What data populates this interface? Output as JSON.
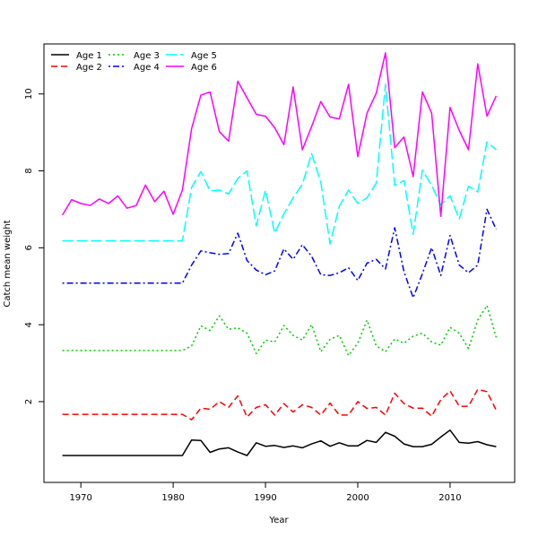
{
  "chart_data": {
    "type": "line",
    "title": "",
    "xlabel": "Year",
    "ylabel": "Catch mean weight",
    "xlim": [
      1966,
      2017
    ],
    "ylim": [
      -0.1,
      11.3
    ],
    "x_ticks": [
      1970,
      1980,
      1990,
      2000,
      2010
    ],
    "y_ticks": [
      2,
      4,
      6,
      8,
      10
    ],
    "grid": false,
    "legend_position": "top-left",
    "x": [
      1968,
      1969,
      1970,
      1971,
      1972,
      1973,
      1974,
      1975,
      1976,
      1977,
      1978,
      1979,
      1980,
      1981,
      1982,
      1983,
      1984,
      1985,
      1986,
      1987,
      1988,
      1989,
      1990,
      1991,
      1992,
      1993,
      1994,
      1995,
      1996,
      1997,
      1998,
      1999,
      2000,
      2001,
      2002,
      2003,
      2004,
      2005,
      2006,
      2007,
      2008,
      2009,
      2010,
      2011,
      2012,
      2013,
      2014,
      2015
    ],
    "series": [
      {
        "name": "Age 1",
        "color": "#000000",
        "dash": "solid",
        "values": [
          0.6,
          0.6,
          0.6,
          0.6,
          0.6,
          0.6,
          0.6,
          0.6,
          0.6,
          0.6,
          0.6,
          0.6,
          0.6,
          0.6,
          1.0,
          0.99,
          0.68,
          0.77,
          0.8,
          0.69,
          0.6,
          0.93,
          0.84,
          0.86,
          0.81,
          0.85,
          0.8,
          0.9,
          0.98,
          0.84,
          0.93,
          0.85,
          0.85,
          0.99,
          0.94,
          1.2,
          1.1,
          0.9,
          0.83,
          0.83,
          0.89,
          1.08,
          1.26,
          0.94,
          0.92,
          0.96,
          0.88,
          0.83
        ]
      },
      {
        "name": "Age 2",
        "color": "#ff0000",
        "dash": "dashed",
        "values": [
          1.67,
          1.67,
          1.67,
          1.67,
          1.67,
          1.67,
          1.67,
          1.67,
          1.67,
          1.67,
          1.67,
          1.67,
          1.67,
          1.67,
          1.53,
          1.83,
          1.8,
          2.0,
          1.85,
          2.15,
          1.6,
          1.85,
          1.92,
          1.65,
          1.95,
          1.73,
          1.92,
          1.85,
          1.65,
          1.96,
          1.65,
          1.65,
          2.0,
          1.82,
          1.85,
          1.65,
          2.22,
          1.95,
          1.83,
          1.83,
          1.62,
          2.05,
          2.28,
          1.88,
          1.88,
          2.32,
          2.26,
          1.78
        ]
      },
      {
        "name": "Age 3",
        "color": "#00cd00",
        "dash": "dotted",
        "values": [
          3.33,
          3.33,
          3.33,
          3.33,
          3.33,
          3.33,
          3.33,
          3.33,
          3.33,
          3.33,
          3.33,
          3.33,
          3.33,
          3.33,
          3.45,
          3.97,
          3.85,
          4.23,
          3.88,
          3.92,
          3.78,
          3.25,
          3.6,
          3.55,
          3.98,
          3.72,
          3.6,
          4.0,
          3.3,
          3.62,
          3.72,
          3.2,
          3.52,
          4.12,
          3.45,
          3.3,
          3.63,
          3.52,
          3.7,
          3.78,
          3.55,
          3.47,
          3.93,
          3.78,
          3.38,
          4.12,
          4.5,
          3.67
        ]
      },
      {
        "name": "Age 4",
        "color": "#0000ff",
        "dash": "dotdash",
        "values": [
          5.08,
          5.08,
          5.08,
          5.08,
          5.08,
          5.08,
          5.08,
          5.08,
          5.08,
          5.08,
          5.08,
          5.08,
          5.08,
          5.08,
          5.55,
          5.92,
          5.87,
          5.83,
          5.85,
          6.38,
          5.67,
          5.42,
          5.3,
          5.4,
          5.97,
          5.7,
          6.08,
          5.78,
          5.3,
          5.28,
          5.35,
          5.48,
          5.15,
          5.6,
          5.7,
          5.45,
          6.52,
          5.38,
          4.7,
          5.33,
          6.0,
          5.28,
          6.32,
          5.55,
          5.35,
          5.55,
          7.0,
          6.48
        ]
      },
      {
        "name": "Age 5",
        "color": "#00ffff",
        "dash": "longdash",
        "values": [
          6.18,
          6.18,
          6.18,
          6.18,
          6.18,
          6.18,
          6.18,
          6.18,
          6.18,
          6.18,
          6.18,
          6.18,
          6.18,
          6.18,
          7.57,
          7.98,
          7.48,
          7.5,
          7.4,
          7.8,
          8.0,
          6.57,
          7.5,
          6.38,
          6.88,
          7.3,
          7.65,
          8.45,
          7.7,
          6.1,
          7.08,
          7.5,
          7.15,
          7.3,
          7.68,
          10.25,
          7.62,
          7.75,
          6.35,
          8.02,
          7.62,
          7.12,
          7.35,
          6.75,
          7.6,
          7.45,
          8.75,
          8.55
        ]
      },
      {
        "name": "Age 6",
        "color": "#ff00ff",
        "dash": "solid",
        "values": [
          6.85,
          7.25,
          7.15,
          7.1,
          7.27,
          7.15,
          7.35,
          7.03,
          7.1,
          7.63,
          7.2,
          7.47,
          6.87,
          7.5,
          9.1,
          9.97,
          10.05,
          9.02,
          8.77,
          10.33,
          9.9,
          9.47,
          9.42,
          9.12,
          8.68,
          10.18,
          8.55,
          9.15,
          9.8,
          9.4,
          9.35,
          10.25,
          8.37,
          9.5,
          10.02,
          11.07,
          8.6,
          8.88,
          7.85,
          10.05,
          9.5,
          6.82,
          9.65,
          9.05,
          8.55,
          10.78,
          9.42,
          9.95
        ]
      }
    ]
  }
}
